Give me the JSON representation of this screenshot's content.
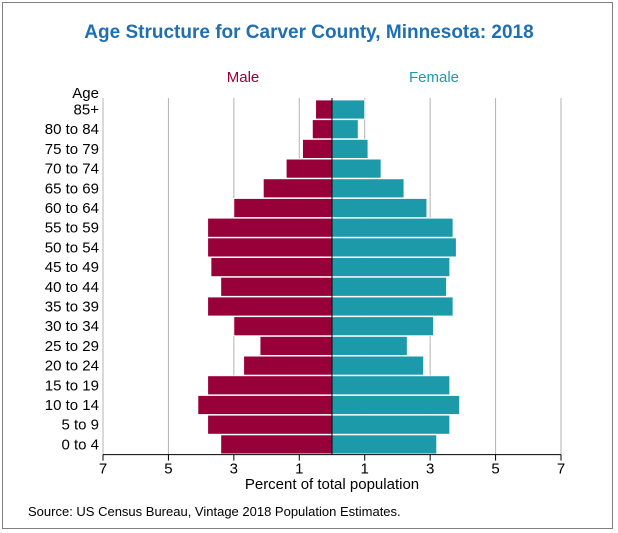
{
  "chart_data": {
    "type": "bar",
    "orientation": "horizontal-pyramid",
    "title": "Age Structure for Carver County, Minnesota: 2018",
    "left_label": "Male",
    "right_label": "Female",
    "category_axis_title": "Age",
    "xlabel": "Percent of total population",
    "source": "Source: US Census Bureau, Vintage 2018 Population Estimates.",
    "categories": [
      "85+",
      "80 to 84",
      "75 to 79",
      "70 to 74",
      "65 to 69",
      "60 to 64",
      "55 to 59",
      "50 to 54",
      "45 to 49",
      "40 to 44",
      "35 to 39",
      "30 to 34",
      "25 to 29",
      "20 to 24",
      "15 to 19",
      "10 to 14",
      "5 to 9",
      "0 to 4"
    ],
    "series": [
      {
        "name": "Male",
        "values": [
          0.5,
          0.6,
          0.9,
          1.4,
          2.1,
          3.0,
          3.8,
          3.8,
          3.7,
          3.4,
          3.8,
          3.0,
          2.2,
          2.7,
          3.8,
          4.1,
          3.8,
          3.4
        ]
      },
      {
        "name": "Female",
        "values": [
          1.0,
          0.8,
          1.1,
          1.5,
          2.2,
          2.9,
          3.7,
          3.8,
          3.6,
          3.5,
          3.7,
          3.1,
          2.3,
          2.8,
          3.6,
          3.9,
          3.6,
          3.2
        ]
      }
    ],
    "xlim": [
      -7,
      7
    ],
    "tick_values": [
      -7,
      -5,
      -3,
      -1,
      1,
      3,
      5,
      7
    ],
    "tick_labels": [
      "7",
      "5",
      "3",
      "1",
      "1",
      "3",
      "5",
      "7"
    ],
    "gridlines": true,
    "colors": {
      "male": "#98003a",
      "female": "#1d9aaa",
      "title": "#1f6fb2",
      "grid": "#b3b3b3"
    }
  }
}
